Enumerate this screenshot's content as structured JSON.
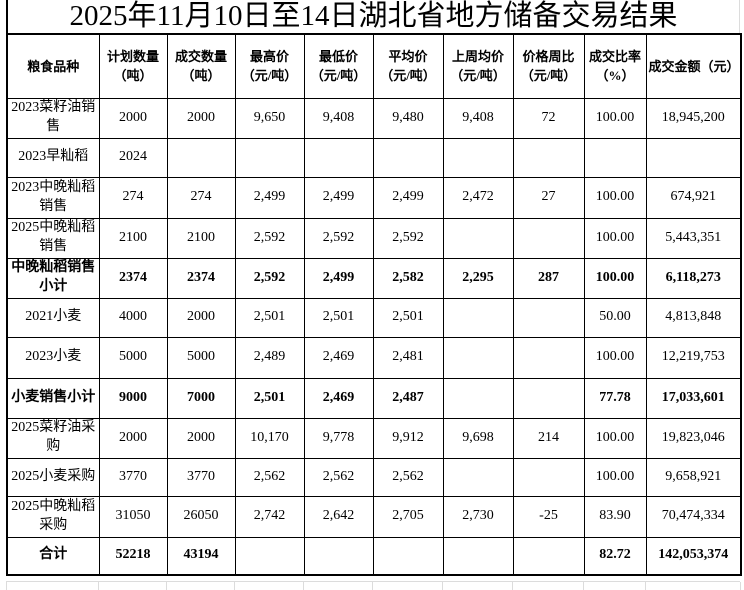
{
  "title": "2025年11月10日至14日湖北省地方储备交易结果",
  "colors": {
    "text": "#000000",
    "border": "#000000",
    "background": "#ffffff",
    "faint_grid": "#dcdcdc"
  },
  "table": {
    "headers": [
      "粮食品种",
      "计划数量\n（吨）",
      "成交数量\n（吨）",
      "最高价\n（元/吨）",
      "最低价\n（元/吨）",
      "平均价\n（元/吨）",
      "上周均价\n（元/吨）",
      "价格周比\n（元/吨）",
      "成交比率\n（%）",
      "成交金额（元）"
    ],
    "rows": [
      {
        "bold": false,
        "cells": [
          "2023菜籽油销\n售",
          "2000",
          "2000",
          "9,650",
          "9,408",
          "9,480",
          "9,408",
          "72",
          "100.00",
          "18,945,200"
        ]
      },
      {
        "bold": false,
        "cells": [
          "2023早籼稻",
          "2024",
          "",
          "",
          "",
          "",
          "",
          "",
          "",
          ""
        ]
      },
      {
        "bold": false,
        "cells": [
          "2023中晚籼稻\n销售",
          "274",
          "274",
          "2,499",
          "2,499",
          "2,499",
          "2,472",
          "27",
          "100.00",
          "674,921"
        ]
      },
      {
        "bold": false,
        "cells": [
          "2025中晚籼稻\n销售",
          "2100",
          "2100",
          "2,592",
          "2,592",
          "2,592",
          "",
          "",
          "100.00",
          "5,443,351"
        ]
      },
      {
        "bold": true,
        "cells": [
          "中晚籼稻销售\n小计",
          "2374",
          "2374",
          "2,592",
          "2,499",
          "2,582",
          "2,295",
          "287",
          "100.00",
          "6,118,273"
        ]
      },
      {
        "bold": false,
        "cells": [
          "2021小麦",
          "4000",
          "2000",
          "2,501",
          "2,501",
          "2,501",
          "",
          "",
          "50.00",
          "4,813,848"
        ]
      },
      {
        "bold": false,
        "cells": [
          "2023小麦",
          "5000",
          "5000",
          "2,489",
          "2,469",
          "2,481",
          "",
          "",
          "100.00",
          "12,219,753"
        ]
      },
      {
        "bold": true,
        "cells": [
          "小麦销售小计",
          "9000",
          "7000",
          "2,501",
          "2,469",
          "2,487",
          "",
          "",
          "77.78",
          "17,033,601"
        ]
      },
      {
        "bold": false,
        "cells": [
          "2025菜籽油采\n购",
          "2000",
          "2000",
          "10,170",
          "9,778",
          "9,912",
          "9,698",
          "214",
          "100.00",
          "19,823,046"
        ]
      },
      {
        "bold": false,
        "cells": [
          "2025小麦采购",
          "3770",
          "3770",
          "2,562",
          "2,562",
          "2,562",
          "",
          "",
          "100.00",
          "9,658,921"
        ]
      },
      {
        "bold": false,
        "cells": [
          "2025中晚籼稻\n采购",
          "31050",
          "26050",
          "2,742",
          "2,642",
          "2,705",
          "2,730",
          "-25",
          "83.90",
          "70,474,334"
        ]
      },
      {
        "bold": true,
        "cells": [
          "合计",
          "52218",
          "43194",
          "",
          "",
          "",
          "",
          "",
          "82.72",
          "142,053,374"
        ]
      }
    ]
  }
}
